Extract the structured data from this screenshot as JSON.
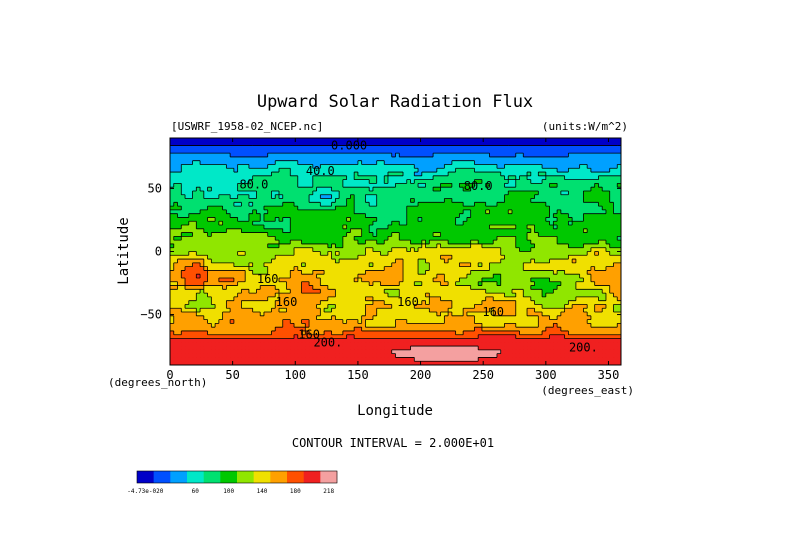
{
  "chart_data": {
    "type": "heatmap",
    "title": "Upward Solar Radiation Flux",
    "source_label": "[USWRF_1958-02_NCEP.nc]",
    "units_label": "(units:W/m^2)",
    "xlabel": "Longitude",
    "ylabel": "Latitude",
    "x_unit_label": "(degrees_east)",
    "y_unit_label": "(degrees_north)",
    "xlim": [
      0,
      360
    ],
    "ylim": [
      -90,
      90
    ],
    "x_ticks": [
      0,
      50,
      100,
      150,
      200,
      250,
      300,
      350
    ],
    "x_tick_labels": [
      "0",
      "50",
      "100",
      "150",
      "200",
      "250",
      "300",
      "350"
    ],
    "y_ticks": [
      50,
      0,
      -50
    ],
    "y_tick_labels": [
      "50",
      "0",
      "−50"
    ],
    "contour_interval_text": "CONTOUR INTERVAL = 2.000E+01",
    "colorbar": {
      "levels": [
        0,
        20,
        40,
        60,
        80,
        100,
        120,
        140,
        160,
        180,
        200,
        218
      ],
      "tick_labels": [
        "-4.73e-020",
        "60",
        "100",
        "140",
        "180",
        "218"
      ],
      "tick_positions": [
        0,
        3,
        5,
        7,
        9,
        11
      ],
      "colors": [
        "#0000c8",
        "#0050ff",
        "#00a0ff",
        "#00e8c8",
        "#00e070",
        "#00c800",
        "#90e600",
        "#f0e000",
        "#ffa000",
        "#ff5000",
        "#f02020",
        "#f4a0a0"
      ]
    },
    "contour_labels": [
      {
        "text": "0.000",
        "lon": 143,
        "lat": 84
      },
      {
        "text": "40.0",
        "lon": 120,
        "lat": 64
      },
      {
        "text": "80.0",
        "lon": 67,
        "lat": 53
      },
      {
        "text": "80.0",
        "lon": 246,
        "lat": 52
      },
      {
        "text": "160",
        "lon": 78,
        "lat": -22
      },
      {
        "text": "160",
        "lon": 93,
        "lat": -40
      },
      {
        "text": "160",
        "lon": 190,
        "lat": -40
      },
      {
        "text": "160",
        "lon": 258,
        "lat": -48
      },
      {
        "text": "160",
        "lon": 111,
        "lat": -66
      },
      {
        "text": "200.",
        "lon": 126,
        "lat": -72
      },
      {
        "text": "200.",
        "lon": 330,
        "lat": -76
      }
    ]
  }
}
